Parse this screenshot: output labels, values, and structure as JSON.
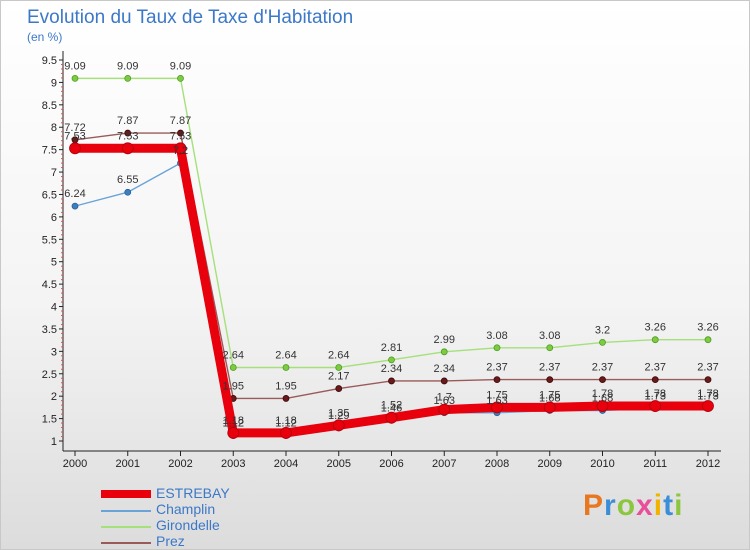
{
  "header": {
    "title": "Evolution du Taux de Taxe d'Habitation",
    "subtitle": "(en %)"
  },
  "logo": {
    "text": "Proxiti",
    "colors": [
      "#e87722",
      "#3c8dd8",
      "#8cc63f",
      "#e84e9a",
      "#f2b300",
      "#3c8dd8",
      "#8cc63f"
    ]
  },
  "chart_data": {
    "type": "line",
    "title": "Evolution du Taux de Taxe d'Habitation",
    "subtitle": "(en %)",
    "xlabel": "",
    "ylabel": "",
    "x": [
      "2000",
      "2001",
      "2002",
      "2003",
      "2004",
      "2005",
      "2006",
      "2007",
      "2008",
      "2009",
      "2010",
      "2011",
      "2012"
    ],
    "ylim": [
      1,
      9.5
    ],
    "yticks": [
      "1",
      "1.5",
      "2",
      "2.5",
      "3",
      "3.5",
      "4",
      "4.5",
      "5",
      "5.5",
      "6",
      "6.5",
      "7",
      "7.5",
      "8",
      "8.5",
      "9",
      "9.5"
    ],
    "grid": false,
    "series": [
      {
        "name": "ESTREBAY",
        "color": "#e8000d",
        "values": [
          7.53,
          7.53,
          7.53,
          1.18,
          1.18,
          1.35,
          1.52,
          1.7,
          1.75,
          1.75,
          1.78,
          1.78,
          1.78
        ],
        "labels": [
          "7.53",
          "7.53",
          "7.53",
          "1.18",
          "1.18",
          "1.35",
          "1.52",
          "1.7",
          "1.75",
          "1.75",
          "1.78",
          "1.78",
          "1.78"
        ]
      },
      {
        "name": "Champlin",
        "color": "#4a8bc8",
        "values": [
          6.24,
          6.55,
          7.2,
          1.12,
          1.12,
          1.29,
          1.46,
          1.63,
          1.63,
          1.68,
          1.68,
          1.73,
          1.73
        ],
        "labels": [
          "6.24",
          "6.55",
          "7.2",
          "1.12",
          "1.12",
          "1.29",
          "1.46",
          "1.63",
          "1.63",
          "1.68",
          "1.68",
          "1.73",
          "1.73"
        ]
      },
      {
        "name": "Girondelle",
        "color": "#8fd65a",
        "values": [
          9.09,
          9.09,
          9.09,
          2.64,
          2.64,
          2.64,
          2.81,
          2.99,
          3.08,
          3.08,
          3.2,
          3.26,
          3.26
        ],
        "labels": [
          "9.09",
          "9.09",
          "9.09",
          "2.64",
          "2.64",
          "2.64",
          "2.81",
          "2.99",
          "3.08",
          "3.08",
          "3.2",
          "3.26",
          "3.26"
        ]
      },
      {
        "name": "Prez",
        "color": "#7a2a2a",
        "values": [
          7.72,
          7.87,
          7.87,
          1.95,
          1.95,
          2.17,
          2.34,
          2.34,
          2.37,
          2.37,
          2.37,
          2.37,
          2.37
        ],
        "labels": [
          "7.72",
          "7.87",
          "7.87",
          "1.95",
          "1.95",
          "2.17",
          "2.34",
          "2.34",
          "2.37",
          "2.37",
          "2.37",
          "2.37",
          "2.37"
        ]
      }
    ],
    "legend": [
      "ESTREBAY",
      "Champlin",
      "Girondelle",
      "Prez"
    ]
  }
}
